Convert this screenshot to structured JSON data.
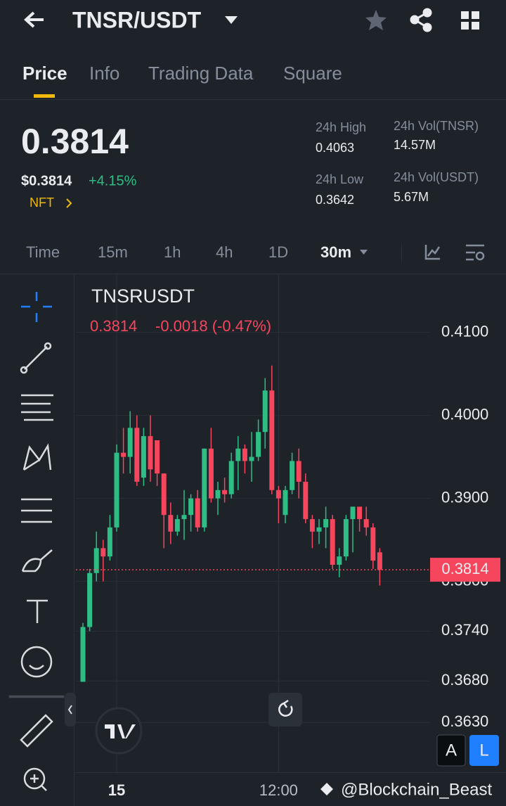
{
  "header": {
    "pair": "TNSR/USDT"
  },
  "tabs": [
    "Price",
    "Info",
    "Trading Data",
    "Square"
  ],
  "ticker": {
    "price": "0.3814",
    "price_usd": "$0.3814",
    "change": "+4.15%",
    "tag": "NFT",
    "stats": [
      {
        "label": "24h High",
        "value": "0.4063"
      },
      {
        "label": "24h Vol(TNSR)",
        "value": "14.57M"
      },
      {
        "label": "24h Low",
        "value": "0.3642"
      },
      {
        "label": "24h Vol(USDT)",
        "value": "5.67M"
      }
    ]
  },
  "intervals": [
    "Time",
    "15m",
    "1h",
    "4h",
    "1D",
    "30m"
  ],
  "chart_data": {
    "type": "candlestick",
    "title": "TNSRUSDT",
    "legend_price": "0.3814",
    "legend_change": "-0.0018 (-0.47%)",
    "up_color": "#2ebd85",
    "down_color": "#f6465d",
    "categories": [
      null,
      null,
      null,
      null,
      null,
      "15",
      null,
      null,
      null,
      null,
      null,
      null,
      null,
      null,
      null,
      null,
      null,
      null,
      null,
      null,
      null,
      null,
      null,
      null,
      null,
      null,
      null,
      null,
      null,
      "12:00",
      null,
      null,
      null,
      null,
      null,
      null,
      null,
      null,
      null,
      null,
      null,
      null,
      null,
      null,
      null
    ],
    "open": [
      0.3679,
      0.3745,
      0.381,
      0.384,
      0.383,
      0.3865,
      0.3955,
      0.395,
      0.3985,
      0.3925,
      0.3975,
      0.397,
      0.393,
      0.388,
      0.386,
      0.3875,
      0.388,
      0.39,
      0.3865,
      0.396,
      0.39,
      0.391,
      0.3905,
      0.3945,
      0.396,
      0.3945,
      0.395,
      0.398,
      0.403,
      0.391,
      0.388,
      0.391,
      0.3945,
      0.392,
      0.3875,
      0.386,
      0.3865,
      0.3875,
      0.382,
      0.383,
      0.3875,
      0.389,
      0.3875,
      0.3865,
      0.3835
    ],
    "high": [
      0.375,
      0.3815,
      0.386,
      0.385,
      0.388,
      0.3965,
      0.3985,
      0.4005,
      0.4,
      0.3985,
      0.4,
      0.397,
      0.393,
      0.3895,
      0.388,
      0.391,
      0.3905,
      0.391,
      0.396,
      0.3985,
      0.392,
      0.3925,
      0.3955,
      0.3975,
      0.3965,
      0.398,
      0.3995,
      0.4045,
      0.406,
      0.3915,
      0.3915,
      0.3955,
      0.396,
      0.393,
      0.388,
      0.3875,
      0.389,
      0.388,
      0.384,
      0.388,
      0.389,
      0.389,
      0.389,
      0.387,
      0.384
    ],
    "low": [
      0.3679,
      0.374,
      0.38,
      0.38,
      0.3825,
      0.386,
      0.393,
      0.393,
      0.3915,
      0.3915,
      0.392,
      0.3915,
      0.384,
      0.3845,
      0.3855,
      0.385,
      0.386,
      0.386,
      0.386,
      0.3895,
      0.388,
      0.3895,
      0.39,
      0.391,
      0.393,
      0.392,
      0.3945,
      0.396,
      0.3905,
      0.387,
      0.387,
      0.3905,
      0.39,
      0.387,
      0.384,
      0.3845,
      0.384,
      0.3815,
      0.3805,
      0.3825,
      0.3835,
      0.386,
      0.3855,
      0.3815,
      0.3795
    ],
    "close": [
      0.3745,
      0.381,
      0.384,
      0.383,
      0.3865,
      0.3955,
      0.395,
      0.3985,
      0.392,
      0.3975,
      0.3935,
      0.393,
      0.388,
      0.386,
      0.3875,
      0.388,
      0.39,
      0.3865,
      0.396,
      0.39,
      0.391,
      0.3905,
      0.3945,
      0.396,
      0.3945,
      0.395,
      0.398,
      0.403,
      0.391,
      0.39,
      0.391,
      0.3945,
      0.392,
      0.3875,
      0.386,
      0.3865,
      0.3875,
      0.382,
      0.383,
      0.3875,
      0.389,
      0.3875,
      0.3865,
      0.3825,
      0.3814
    ],
    "ylim": [
      0.357,
      0.417
    ],
    "yticks": [
      {
        "value": 0.41,
        "label": "0.4100"
      },
      {
        "value": 0.4,
        "label": "0.4000"
      },
      {
        "value": 0.39,
        "label": "0.3900"
      },
      {
        "value": 0.38,
        "label": "0.3800"
      },
      {
        "value": 0.374,
        "label": "0.3740"
      },
      {
        "value": 0.368,
        "label": "0.3680"
      },
      {
        "value": 0.363,
        "label": "0.3630"
      }
    ],
    "grid": true,
    "last_price": 0.3814
  },
  "footer": {
    "watermark": "@Blockchain_Beast",
    "buttons": [
      "A",
      "L"
    ]
  }
}
